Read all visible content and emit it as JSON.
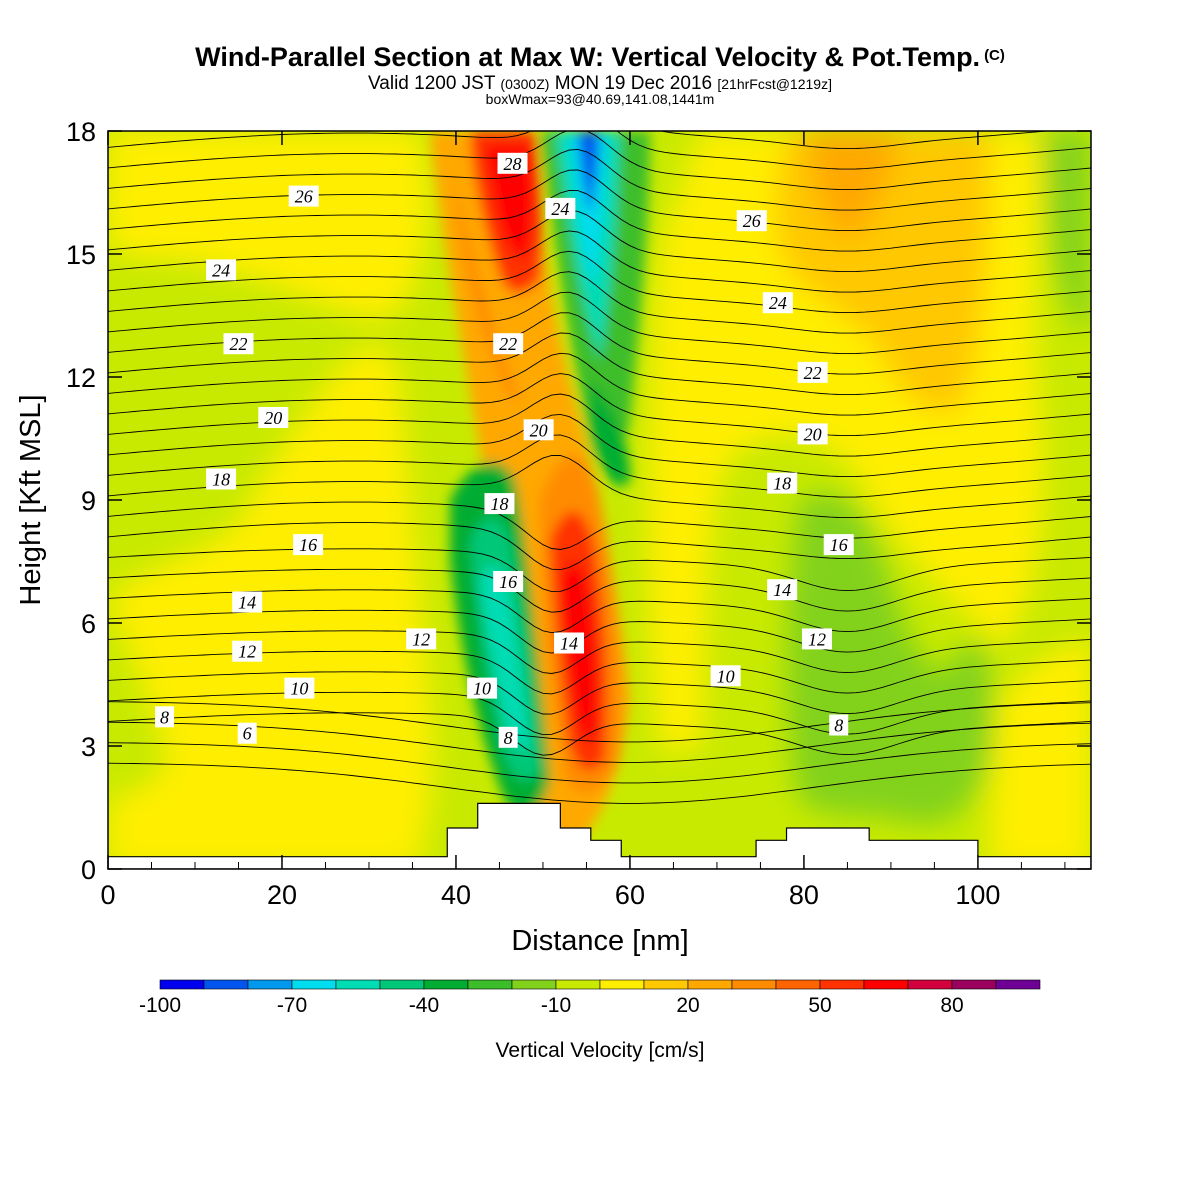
{
  "header": {
    "title": "Wind-Parallel Section at Max W: Vertical Velocity & Pot.Temp.",
    "title_mark": "(C)",
    "valid_prefix": "Valid 1200 JST",
    "valid_utc": "(0300Z)",
    "valid_date": "MON 19 Dec 2016",
    "forecast_tag": "[21hrFcst@1219z]",
    "box_info": "boxWmax=93@40.69,141.08,1441m"
  },
  "chart_data": {
    "type": "heatmap",
    "xlabel": "Distance [nm]",
    "ylabel": "Height [Kft MSL]",
    "xlim": [
      0,
      113
    ],
    "ylim": [
      0,
      18
    ],
    "x_ticks": [
      0,
      20,
      40,
      60,
      80,
      100
    ],
    "y_ticks": [
      0,
      3,
      6,
      9,
      12,
      15,
      18
    ],
    "colorbar": {
      "title": "Vertical Velocity [cm/s]",
      "tick_labels": [
        "-100",
        "-70",
        "-40",
        "-10",
        "20",
        "50",
        "80"
      ],
      "levels": [
        -100,
        -90,
        -80,
        -70,
        -60,
        -50,
        -40,
        -30,
        -20,
        -10,
        0,
        10,
        20,
        30,
        40,
        50,
        60,
        70,
        80,
        90,
        100
      ],
      "colors": [
        "#0000ee",
        "#0055ee",
        "#0099ee",
        "#00ddee",
        "#00dcb4",
        "#00c878",
        "#00ad32",
        "#3cbe2a",
        "#82d21c",
        "#c8ea00",
        "#ffee00",
        "#ffc800",
        "#ffa800",
        "#ff8c00",
        "#ff6400",
        "#ff3200",
        "#ff0000",
        "#d2003c",
        "#9b005f",
        "#6e0096"
      ]
    },
    "updraft_cores_cm_s": [
      {
        "x": 48,
        "height": 16.5,
        "w": 62
      },
      {
        "x": 55,
        "height": 5.5,
        "w": 60
      }
    ],
    "downdraft_cores_cm_s": [
      {
        "x": 55,
        "height": 16.5,
        "w": -95
      },
      {
        "x": 45,
        "height": 5.0,
        "w": -65
      },
      {
        "x": 82,
        "height": 4.0,
        "w": -25
      }
    ],
    "potential_temperature_contour_labels": [
      {
        "value": "26",
        "x": 22.5,
        "height": 16.4
      },
      {
        "value": "24",
        "x": 13,
        "height": 14.6
      },
      {
        "value": "22",
        "x": 15,
        "height": 12.8
      },
      {
        "value": "20",
        "x": 19,
        "height": 11.0
      },
      {
        "value": "18",
        "x": 13,
        "height": 9.5
      },
      {
        "value": "16",
        "x": 23,
        "height": 7.9
      },
      {
        "value": "14",
        "x": 16,
        "height": 6.5
      },
      {
        "value": "12",
        "x": 16,
        "height": 5.3
      },
      {
        "value": "12",
        "x": 36,
        "height": 5.6
      },
      {
        "value": "10",
        "x": 22,
        "height": 4.4
      },
      {
        "value": "8",
        "x": 6.5,
        "height": 3.7
      },
      {
        "value": "6",
        "x": 16,
        "height": 3.3
      },
      {
        "value": "28",
        "x": 46.5,
        "height": 17.2
      },
      {
        "value": "24",
        "x": 52,
        "height": 16.1
      },
      {
        "value": "22",
        "x": 46,
        "height": 12.8
      },
      {
        "value": "20",
        "x": 49.5,
        "height": 10.7
      },
      {
        "value": "18",
        "x": 45,
        "height": 8.9
      },
      {
        "value": "16",
        "x": 46,
        "height": 7.0
      },
      {
        "value": "14",
        "x": 53,
        "height": 5.5
      },
      {
        "value": "10",
        "x": 43,
        "height": 4.4
      },
      {
        "value": "8",
        "x": 46,
        "height": 3.2
      },
      {
        "value": "26",
        "x": 74,
        "height": 15.8
      },
      {
        "value": "24",
        "x": 77,
        "height": 13.8
      },
      {
        "value": "22",
        "x": 81,
        "height": 12.1
      },
      {
        "value": "20",
        "x": 81,
        "height": 10.6
      },
      {
        "value": "18",
        "x": 77.5,
        "height": 9.4
      },
      {
        "value": "16",
        "x": 84,
        "height": 7.9
      },
      {
        "value": "14",
        "x": 77.5,
        "height": 6.8
      },
      {
        "value": "12",
        "x": 81.5,
        "height": 5.6
      },
      {
        "value": "10",
        "x": 71,
        "height": 4.7
      },
      {
        "value": "8",
        "x": 84,
        "height": 3.5
      }
    ],
    "terrain_height_kft": [
      {
        "x0": 0,
        "x1": 39,
        "h": 0.3
      },
      {
        "x0": 39,
        "x1": 42.5,
        "h": 1.0
      },
      {
        "x0": 42.5,
        "x1": 52,
        "h": 1.6
      },
      {
        "x0": 52,
        "x1": 55.5,
        "h": 1.0
      },
      {
        "x0": 55.5,
        "x1": 59,
        "h": 0.7
      },
      {
        "x0": 59,
        "x1": 74.5,
        "h": 0.3
      },
      {
        "x0": 74.5,
        "x1": 78,
        "h": 0.7
      },
      {
        "x0": 78,
        "x1": 87.5,
        "h": 1.0
      },
      {
        "x0": 87.5,
        "x1": 100,
        "h": 0.7
      },
      {
        "x0": 100,
        "x1": 113,
        "h": 0.3
      }
    ]
  }
}
